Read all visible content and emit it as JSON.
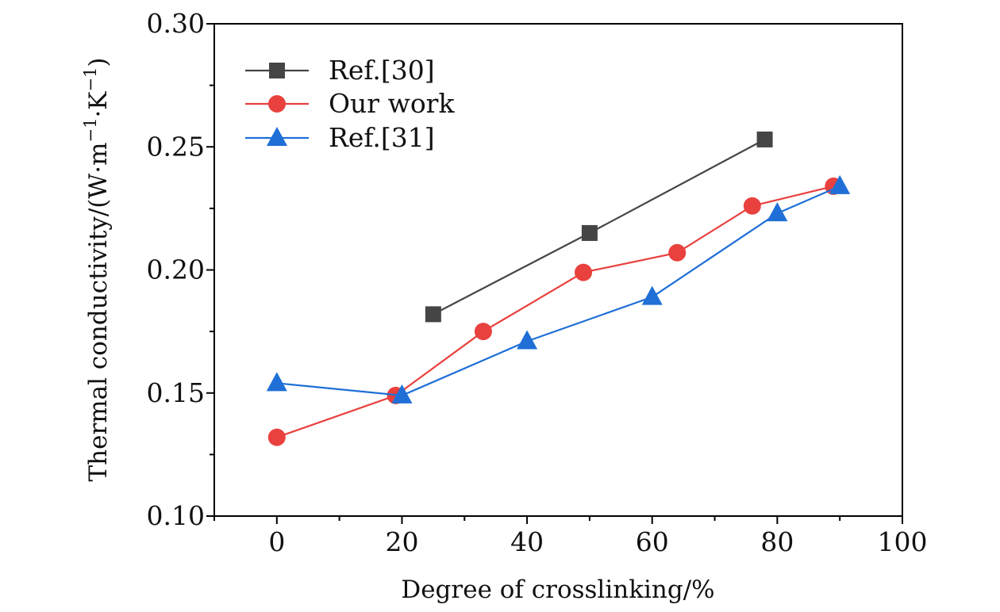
{
  "chart_data": {
    "type": "line",
    "xlabel": "Degree of crosslinking/%",
    "ylabel": {
      "main": "Thermal conductivity/(W·m",
      "exp1": "−1",
      "mid": "·K",
      "exp2": "−1",
      "end": ")"
    },
    "xlim": [
      -10,
      100
    ],
    "ylim": [
      0.1,
      0.3
    ],
    "x_ticks": [
      0,
      20,
      40,
      60,
      80,
      100
    ],
    "x_tick_labels": [
      "0",
      "20",
      "40",
      "60",
      "80",
      "100"
    ],
    "y_ticks": [
      0.1,
      0.15,
      0.2,
      0.25,
      0.3
    ],
    "y_tick_labels": [
      "0.10",
      "0.15",
      "0.20",
      "0.25",
      "0.30"
    ],
    "grid": false,
    "legend": {
      "placement": "top-left"
    },
    "series": [
      {
        "name": "Ref.[30]",
        "color": "#454545",
        "marker": "square",
        "x": [
          25,
          50,
          78
        ],
        "y": [
          0.182,
          0.215,
          0.253
        ]
      },
      {
        "name": "Our work",
        "color": "#e8413e",
        "marker": "circle",
        "x": [
          0,
          19,
          33,
          49,
          64,
          76,
          89
        ],
        "y": [
          0.132,
          0.149,
          0.175,
          0.199,
          0.207,
          0.226,
          0.234
        ]
      },
      {
        "name": "Ref.[31]",
        "color": "#1f6fd6",
        "marker": "triangle",
        "x": [
          0,
          20,
          40,
          60,
          80,
          90
        ],
        "y": [
          0.154,
          0.149,
          0.171,
          0.189,
          0.223,
          0.234
        ]
      }
    ]
  }
}
